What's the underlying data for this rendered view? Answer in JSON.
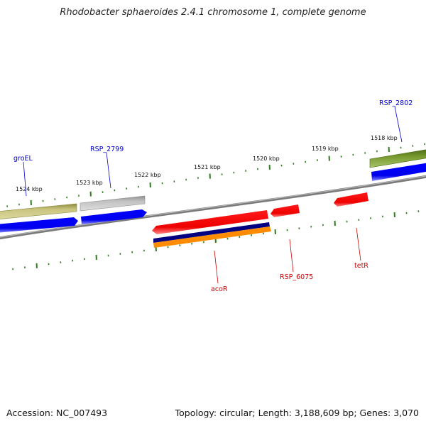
{
  "title": "Rhodobacter sphaeroides 2.4.1 chromosome 1, complete genome",
  "footer": {
    "accession": "Accession: NC_007493",
    "summary": "Topology: circular; Length: 3,188,609 bp; Genes: 3,070"
  },
  "ticks": [
    "1524 kbp",
    "1523 kbp",
    "1522 kbp",
    "1521 kbp",
    "1520 kbp",
    "1519 kbp",
    "1518 kbp"
  ],
  "features": {
    "groEL": "groEL",
    "rsp2799": "RSP_2799",
    "rsp2802": "RSP_2802",
    "acoR": "acoR",
    "rsp6075": "RSP_6075",
    "tetR": "tetR"
  },
  "colors": {
    "forward_label": "#0000cc",
    "reverse_label": "#cc0000",
    "cds_blue": "#0000ff",
    "cds_red": "#ff0000",
    "gene_olive": "#b5b06a",
    "gene_gray": "#b4b4b4",
    "gene_green": "#6b8e23",
    "navy": "#000080",
    "orange": "#ff8c00",
    "tick_green": "#2e7d1e",
    "backbone": "#808080"
  }
}
